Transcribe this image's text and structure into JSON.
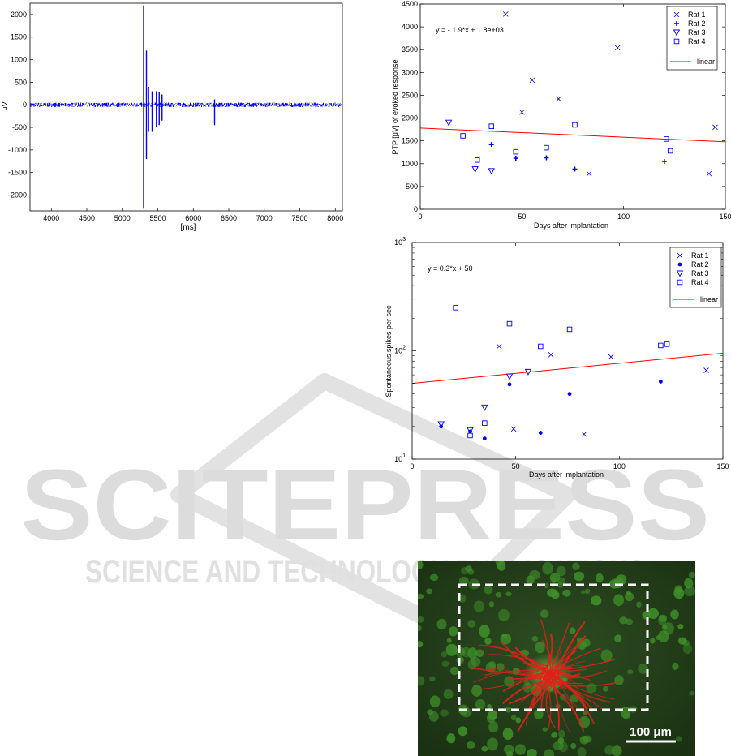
{
  "colors": {
    "trace": "#0000ff",
    "marker": "#0000ff",
    "fit": "#ff0000",
    "axis": "#000000",
    "watermark": "#d6d6d6",
    "micro_bg": "#1f3a17",
    "micro_cells": "#3f8f2a",
    "micro_fibers": "#e0211a",
    "micro_box": "#ffffff"
  },
  "watermark": {
    "brand": "SCITEPRESS",
    "tagline": "SCIENCE AND TECHNOLOGY PUBLICATIONS"
  },
  "chart_data": [
    {
      "type": "line",
      "xlabel": "[ms]",
      "ylabel": "μV",
      "xlim": [
        3700,
        8100
      ],
      "ylim": [
        -2350,
        2250
      ],
      "xticks": [
        4000,
        4500,
        5000,
        5500,
        6000,
        6500,
        7000,
        7500,
        8000
      ],
      "yticks": [
        2000,
        1500,
        1000,
        500,
        0,
        -500,
        -1000,
        -1500,
        -2000
      ],
      "grid": false,
      "series": [
        {
          "baseline_noise": 50,
          "events": [
            {
              "x": 5300,
              "min": -2300,
              "max": 2200
            },
            {
              "x": 5340,
              "min": -1200,
              "max": 1200
            },
            {
              "x": 5370,
              "min": -600,
              "max": 400
            },
            {
              "x": 5420,
              "min": -600,
              "max": 300
            },
            {
              "x": 5480,
              "min": -500,
              "max": 300
            },
            {
              "x": 5520,
              "min": -450,
              "max": 280
            },
            {
              "x": 5560,
              "min": -350,
              "max": 230
            },
            {
              "x": 6300,
              "min": -450,
              "max": 120
            }
          ]
        }
      ]
    },
    {
      "type": "scatter",
      "xlabel": "Days after implantation",
      "ylabel": "PTP [μV] of evoked response",
      "xlim": [
        0,
        150
      ],
      "ylim": [
        0,
        4500
      ],
      "xticks": [
        0,
        50,
        100,
        150
      ],
      "yticks": [
        0,
        500,
        1000,
        1500,
        2000,
        2500,
        3000,
        3500,
        4000,
        4500
      ],
      "grid": false,
      "legend": "top-right",
      "annotation": "y = - 1.9*x + 1.8e+03",
      "fit": {
        "name": "linear",
        "x": [
          0,
          150
        ],
        "y": [
          1780,
          1480
        ]
      },
      "series": [
        {
          "name": "Rat 1",
          "marker": "x",
          "x": [
            42,
            50,
            55,
            68,
            83,
            97,
            142,
            145
          ],
          "y": [
            4280,
            2130,
            2830,
            2420,
            780,
            3540,
            780,
            1800
          ]
        },
        {
          "name": "Rat 2",
          "marker": "+",
          "x": [
            35,
            47,
            62,
            76,
            120
          ],
          "y": [
            1420,
            1120,
            1130,
            880,
            1050
          ]
        },
        {
          "name": "Rat 3",
          "marker": "v",
          "x": [
            14,
            27,
            35
          ],
          "y": [
            1900,
            880,
            840
          ]
        },
        {
          "name": "Rat 4",
          "marker": "s",
          "x": [
            21,
            28,
            35,
            47,
            62,
            76,
            121,
            123
          ],
          "y": [
            1610,
            1080,
            1820,
            1260,
            1350,
            1850,
            1540,
            1280
          ]
        }
      ]
    },
    {
      "type": "scatter",
      "xlabel": "Days after implantation",
      "ylabel": "Spontaneous spikes per sec",
      "xlim": [
        0,
        150
      ],
      "ylim": [
        10,
        1000
      ],
      "yscale": "log",
      "xticks": [
        0,
        50,
        100,
        150
      ],
      "yticks": [
        {
          "value": 10,
          "base": "10",
          "exp": "1"
        },
        {
          "value": 100,
          "base": "10",
          "exp": "2"
        },
        {
          "value": 1000,
          "base": "10",
          "exp": "3"
        }
      ],
      "grid": false,
      "legend": "top-right",
      "annotation": "y = 0.3*x + 50",
      "fit": {
        "name": "linear",
        "x": [
          0,
          150
        ],
        "y": [
          50,
          95
        ]
      },
      "series": [
        {
          "name": "Rat 1",
          "marker": "x",
          "x": [
            42,
            49,
            67,
            83,
            96,
            142
          ],
          "y": [
            110,
            19,
            92,
            17,
            88,
            66
          ]
        },
        {
          "name": "Rat 2",
          "marker": "o",
          "x": [
            14,
            28,
            35,
            47,
            62,
            76,
            120
          ],
          "y": [
            20,
            18,
            15.5,
            49,
            17.5,
            40,
            52
          ]
        },
        {
          "name": "Rat 3",
          "marker": "v",
          "x": [
            14,
            28,
            35,
            47,
            56
          ],
          "y": [
            21,
            18.5,
            30,
            58,
            64
          ]
        },
        {
          "name": "Rat 4",
          "marker": "s",
          "x": [
            21,
            28,
            35,
            47,
            62,
            76,
            120,
            123
          ],
          "y": [
            250,
            16.5,
            21.5,
            178,
            110,
            158,
            112,
            115
          ]
        }
      ]
    }
  ],
  "micrograph": {
    "scalebar_label": "100 μm"
  }
}
